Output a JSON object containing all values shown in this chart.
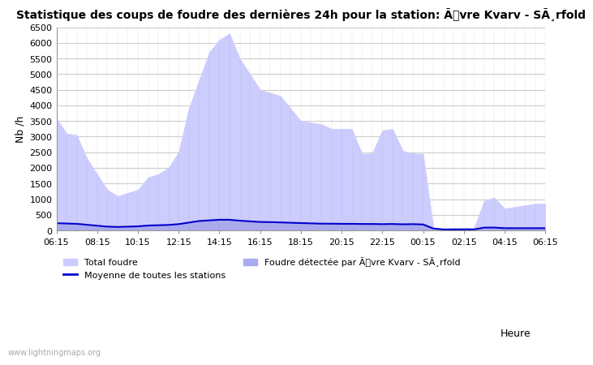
{
  "title": "Statistique des coups de foudre des dernières 24h pour la station: Ãvre Kvarv - SÃ¸rfold",
  "ylabel": "Nb /h",
  "xlabel_right": "Heure",
  "watermark": "www.lightningmaps.org",
  "xtick_labels": [
    "06:15",
    "08:15",
    "10:15",
    "12:15",
    "14:15",
    "16:15",
    "18:15",
    "20:15",
    "22:15",
    "00:15",
    "02:15",
    "04:15",
    "06:15"
  ],
  "ylim": [
    0,
    6500
  ],
  "yticks": [
    0,
    500,
    1000,
    1500,
    2000,
    2500,
    3000,
    3500,
    4000,
    4500,
    5000,
    5500,
    6000,
    6500
  ],
  "background_color": "#ffffff",
  "plot_bg_color": "#ffffff",
  "grid_color": "#cccccc",
  "total_foudre_color": "#ccccff",
  "total_foudre_edge": "#ccccff",
  "detected_foudre_color": "#aaaaee",
  "detected_foudre_edge": "#aaaaee",
  "mean_line_color": "#0000cc",
  "legend_total_label": "Total foudre",
  "legend_mean_label": "Moyenne de toutes les stations",
  "legend_detected_label": "Foudre détectée par Ãvre Kvarv - SÃ¸rfold",
  "x_total": [
    0,
    1,
    2,
    3,
    4,
    5,
    6,
    7,
    8,
    9,
    10,
    11,
    12,
    13,
    14,
    15,
    16,
    17,
    18,
    19,
    20,
    21,
    22,
    23,
    24,
    25,
    26,
    27,
    28,
    29,
    30,
    31,
    32,
    33,
    34,
    35,
    36,
    37,
    38,
    39,
    40,
    41,
    42,
    43,
    44,
    45,
    46,
    47,
    48
  ],
  "y_total": [
    3600,
    3100,
    3050,
    2300,
    1800,
    1300,
    1100,
    1200,
    1300,
    1700,
    1800,
    2000,
    2500,
    3900,
    4800,
    5700,
    6100,
    6300,
    5500,
    5000,
    4500,
    4400,
    4300,
    3900,
    3500,
    3450,
    3400,
    3250,
    3250,
    3250,
    2450,
    2460,
    3200,
    3250,
    2550,
    2460,
    2450,
    100,
    50,
    80,
    90,
    80,
    950,
    1050,
    700,
    750,
    800,
    850,
    850
  ],
  "y_detected": [
    200,
    200,
    200,
    150,
    120,
    100,
    100,
    120,
    130,
    160,
    170,
    180,
    200,
    250,
    300,
    320,
    350,
    350,
    320,
    300,
    280,
    270,
    260,
    250,
    240,
    230,
    220,
    220,
    215,
    215,
    210,
    210,
    205,
    210,
    200,
    200,
    195,
    50,
    20,
    20,
    20,
    20,
    80,
    80,
    60,
    60,
    65,
    65,
    65
  ],
  "y_mean": [
    230,
    220,
    210,
    180,
    150,
    120,
    110,
    120,
    130,
    155,
    165,
    175,
    200,
    250,
    300,
    320,
    340,
    340,
    310,
    290,
    270,
    265,
    255,
    245,
    235,
    225,
    215,
    215,
    210,
    210,
    205,
    205,
    200,
    205,
    195,
    200,
    190,
    60,
    30,
    30,
    30,
    30,
    90,
    90,
    70,
    70,
    70,
    70,
    70
  ]
}
